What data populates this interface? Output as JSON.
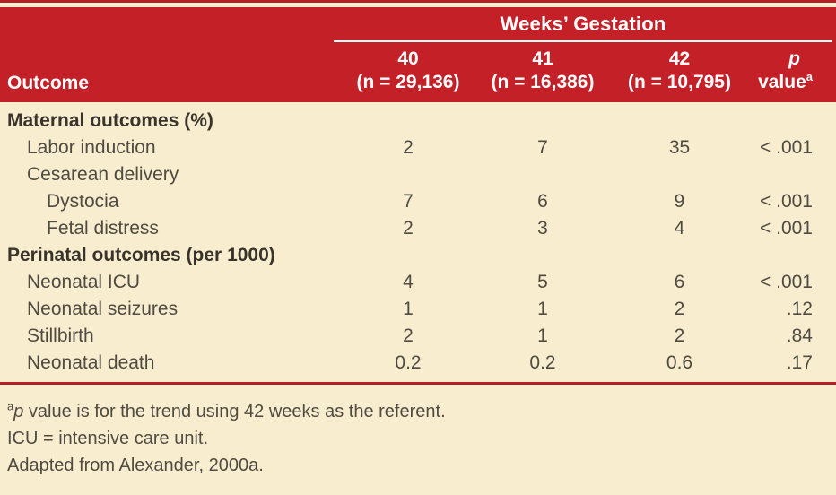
{
  "table": {
    "header": {
      "span_title": "Weeks’ Gestation",
      "outcome_label": "Outcome",
      "columns": [
        {
          "week": "40",
          "n": "(n = 29,136)"
        },
        {
          "week": "41",
          "n": "(n = 16,386)"
        },
        {
          "week": "42",
          "n": "(n = 10,795)"
        }
      ],
      "p_col": {
        "p": "p",
        "value": "value",
        "sup": "a"
      }
    },
    "rows": [
      {
        "label": "Maternal outcomes (%)",
        "type": "section",
        "indent": 0,
        "values": [
          "",
          "",
          ""
        ],
        "p": ""
      },
      {
        "label": "Labor induction",
        "type": "item",
        "indent": 1,
        "values": [
          "2",
          "7",
          "35"
        ],
        "p": "< .001"
      },
      {
        "label": "Cesarean delivery",
        "type": "item",
        "indent": 1,
        "values": [
          "",
          "",
          ""
        ],
        "p": ""
      },
      {
        "label": "Dystocia",
        "type": "item",
        "indent": 2,
        "values": [
          "7",
          "6",
          "9"
        ],
        "p": "< .001"
      },
      {
        "label": "Fetal distress",
        "type": "item",
        "indent": 2,
        "values": [
          "2",
          "3",
          "4"
        ],
        "p": "< .001"
      },
      {
        "label": "Perinatal outcomes (per 1000)",
        "type": "section",
        "indent": 0,
        "values": [
          "",
          "",
          ""
        ],
        "p": ""
      },
      {
        "label": "Neonatal ICU",
        "type": "item",
        "indent": 1,
        "values": [
          "4",
          "5",
          "6"
        ],
        "p": "< .001"
      },
      {
        "label": "Neonatal seizures",
        "type": "item",
        "indent": 1,
        "values": [
          "1",
          "1",
          "2"
        ],
        "p": ".12"
      },
      {
        "label": "Stillbirth",
        "type": "item",
        "indent": 1,
        "values": [
          "2",
          "1",
          "2"
        ],
        "p": ".84"
      },
      {
        "label": "Neonatal death",
        "type": "item",
        "indent": 1,
        "values": [
          "0.2",
          "0.2",
          "0.6"
        ],
        "p": ".17"
      }
    ],
    "footnotes": [
      {
        "sup": "a",
        "italic": "p",
        "text": " value is for the trend using 42 weeks as the referent."
      },
      {
        "text": "ICU = intensive care unit."
      },
      {
        "text": "Adapted from Alexander, 2000a."
      }
    ]
  },
  "colors": {
    "band_red": "#c32028",
    "rule_red": "#b32025",
    "background_cream": "#f9edcf",
    "header_text": "#ffffff",
    "body_text": "#4f4b42",
    "section_text": "#38342b"
  }
}
